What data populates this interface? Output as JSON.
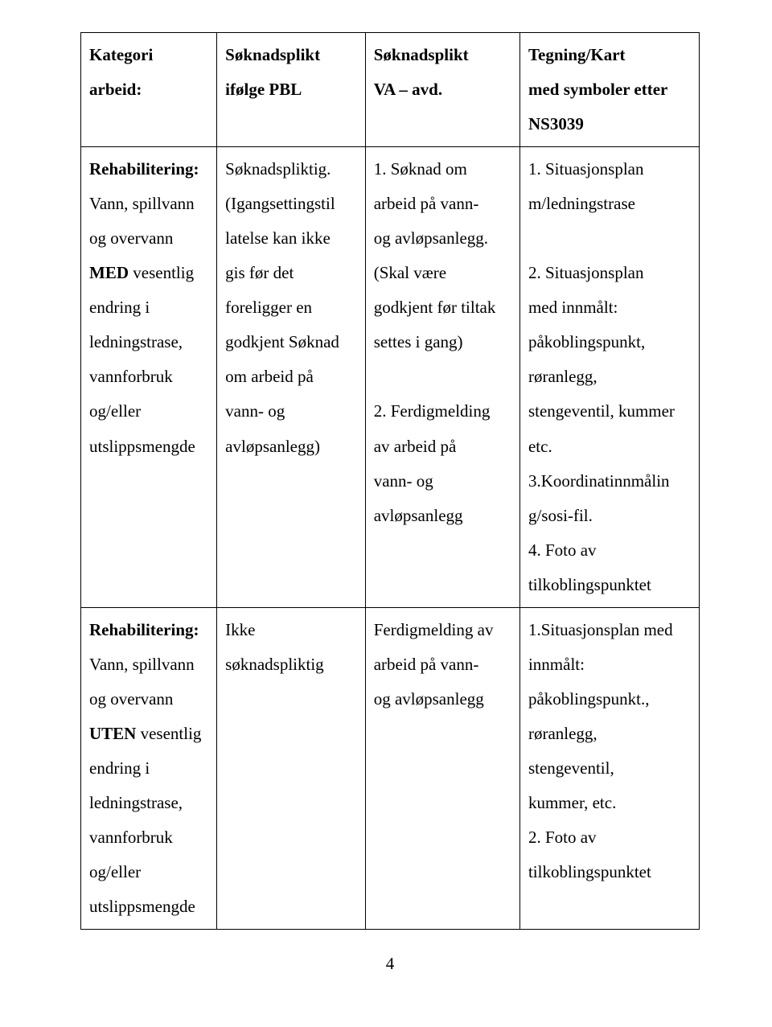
{
  "table": {
    "header": {
      "c1": "Kategori arbeid:",
      "c2_l1": "Søknadsplikt",
      "c2_l2": "ifølge PBL",
      "c3_l1": "Søknadsplikt",
      "c3_l2": "VA – avd.",
      "c4_l1": "Tegning/Kart",
      "c4_l2": "med symboler etter",
      "c4_l3": "NS3039"
    },
    "row1": {
      "c1_l1": "Rehabilitering:",
      "c1_l2": "Vann, spillvann",
      "c1_l3": "og overvann",
      "c1_l4_pre": "MED",
      "c1_l4_post": " vesentlig",
      "c1_l5": "endring i",
      "c1_l6": "ledningstrase,",
      "c1_l7": "vannforbruk",
      "c1_l8": "og/eller",
      "c1_l9": "utslippsmengde",
      "c2_l1": "Søknadspliktig.",
      "c2_l2": "(Igangsettingstil",
      "c2_l3": "latelse kan ikke",
      "c2_l4": "gis før det",
      "c2_l5": "foreligger en",
      "c2_l6": "godkjent Søknad",
      "c2_l7": "om arbeid på",
      "c2_l8": "vann- og",
      "c2_l9": "avløpsanlegg)",
      "c3_l1": "1. Søknad om",
      "c3_l2": "arbeid på vann-",
      "c3_l3": "og avløpsanlegg.",
      "c3_l4": "(Skal være",
      "c3_l5": "godkjent før tiltak",
      "c3_l6": "settes i gang)",
      "c3_l7": "",
      "c3_l8": "2. Ferdigmelding",
      "c3_l9": "av arbeid på",
      "c3_l10": "vann- og",
      "c3_l11": "avløpsanlegg",
      "c4_l1": "1. Situasjonsplan",
      "c4_l2": "m/ledningstrase",
      "c4_l3": "",
      "c4_l4": "2. Situasjonsplan",
      "c4_l5": "med innmålt:",
      "c4_l6": "påkoblingspunkt,",
      "c4_l7": "røranlegg,",
      "c4_l8": "stengeventil, kummer",
      "c4_l9": "etc.",
      "c4_l10": "3.Koordinatinnmålin",
      "c4_l11": "g/sosi-fil.",
      "c4_l12": "4. Foto av",
      "c4_l13": " tilkoblingspunktet"
    },
    "row2": {
      "c1_l1": "Rehabilitering:",
      "c1_l2": "Vann, spillvann",
      "c1_l3": "og overvann",
      "c1_l4_pre": "UTEN",
      "c1_l4_post": " vesentlig",
      "c1_l5": "endring i",
      "c1_l6": "ledningstrase,",
      "c1_l7": "vannforbruk",
      "c1_l8": "og/eller",
      "c1_l9": "utslippsmengde",
      "c2_l1": "Ikke",
      "c2_l2": "søknadspliktig",
      "c3_l1": "Ferdigmelding av",
      "c3_l2": "arbeid på vann-",
      "c3_l3": "og avløpsanlegg",
      "c4_l1": "1.Situasjonsplan med",
      "c4_l2": " innmålt:",
      "c4_l3": "påkoblingspunkt.,",
      "c4_l4": "røranlegg,",
      "c4_l5": "stengeventil,",
      "c4_l6": "kummer, etc.",
      "c4_l7": "2. Foto av",
      "c4_l8": "tilkoblingspunktet"
    }
  },
  "pageNumber": "4"
}
